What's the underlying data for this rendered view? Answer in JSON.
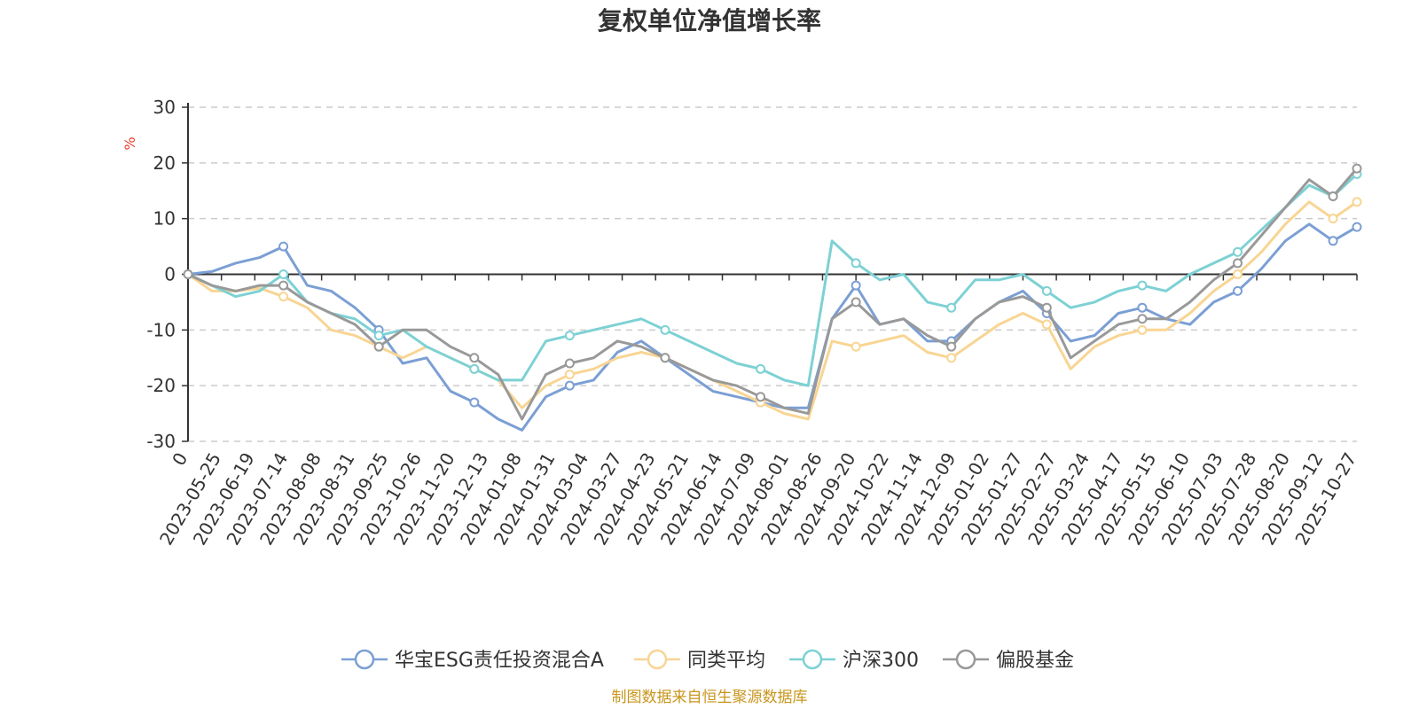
{
  "chart_data": {
    "type": "line",
    "title": "复权单位净值增长率",
    "ylabel": "%",
    "xlabel": "",
    "ylim": [
      -30,
      30
    ],
    "y_ticks": [
      "30",
      "20",
      "10",
      "0",
      "-10",
      "-20",
      "-30"
    ],
    "x_tick_labels": [
      "0",
      "2023-05-25",
      "2023-06-19",
      "2023-07-14",
      "2023-08-08",
      "2023-08-31",
      "2023-09-25",
      "2023-10-26",
      "2023-11-20",
      "2023-12-13",
      "2024-01-08",
      "2024-01-31",
      "2024-03-04",
      "2024-03-27",
      "2024-04-23",
      "2024-05-21",
      "2024-06-14",
      "2024-07-09",
      "2024-08-01",
      "2024-08-26",
      "2024-09-20",
      "2024-10-22",
      "2024-11-14",
      "2024-12-09",
      "2025-01-02",
      "2025-01-27",
      "2025-02-27",
      "2025-03-24",
      "2025-04-17",
      "2025-05-15",
      "2025-06-10",
      "2025-07-03",
      "2025-07-28",
      "2025-08-20",
      "2025-09-12",
      "2025-10-27"
    ],
    "grid": true,
    "legend_position": "bottom",
    "series": [
      {
        "name": "华宝ESG责任投资混合A",
        "color": "#7b9fd4",
        "values": [
          0,
          0.5,
          2,
          3,
          5,
          -2,
          -3,
          -6,
          -10,
          -16,
          -15,
          -21,
          -23,
          -26,
          -28,
          -22,
          -20,
          -19,
          -14,
          -12,
          -15,
          -18,
          -21,
          -22,
          -23,
          -24,
          -24,
          -8,
          -2,
          -9,
          -8,
          -12,
          -12,
          -8,
          -5,
          -3,
          -7,
          -12,
          -11,
          -7,
          -6,
          -8,
          -9,
          -5,
          -3,
          1,
          6,
          9,
          6,
          8.5
        ]
      },
      {
        "name": "同类平均",
        "color": "#f8d593",
        "values": [
          0,
          -3,
          -3,
          -2.5,
          -4,
          -6,
          -10,
          -11,
          -13,
          -15,
          -13,
          -15,
          -17,
          -19,
          -24,
          -20,
          -18,
          -17,
          -15,
          -14,
          -15,
          -17,
          -19,
          -21,
          -23,
          -25,
          -26,
          -12,
          -13,
          -12,
          -11,
          -14,
          -15,
          -12,
          -9,
          -7,
          -9,
          -17,
          -13,
          -11,
          -10,
          -10,
          -7,
          -3,
          0,
          4,
          9,
          13,
          10,
          13
        ]
      },
      {
        "name": "沪深300",
        "color": "#7dd1d4",
        "values": [
          0,
          -2,
          -4,
          -3,
          0,
          -5,
          -7,
          -8,
          -11,
          -10,
          -13,
          -15,
          -17,
          -19,
          -19,
          -12,
          -11,
          -10,
          -9,
          -8,
          -10,
          -12,
          -14,
          -16,
          -17,
          -19,
          -20,
          6,
          2,
          -1,
          0,
          -5,
          -6,
          -1,
          -1,
          0,
          -3,
          -6,
          -5,
          -3,
          -2,
          -3,
          0,
          2,
          4,
          8,
          12,
          16,
          14,
          18
        ]
      },
      {
        "name": "偏股基金",
        "color": "#999999",
        "values": [
          0,
          -2,
          -3,
          -2,
          -2,
          -5,
          -7,
          -9,
          -13,
          -10,
          -10,
          -13,
          -15,
          -18,
          -26,
          -18,
          -16,
          -15,
          -12,
          -13,
          -15,
          -17,
          -19,
          -20,
          -22,
          -24,
          -25,
          -8,
          -5,
          -9,
          -8,
          -11,
          -13,
          -8,
          -5,
          -4,
          -6,
          -15,
          -12,
          -9,
          -8,
          -8,
          -5,
          -1,
          2,
          7,
          12,
          17,
          14,
          19
        ]
      }
    ]
  },
  "source_note": "制图数据来自恒生聚源数据库"
}
